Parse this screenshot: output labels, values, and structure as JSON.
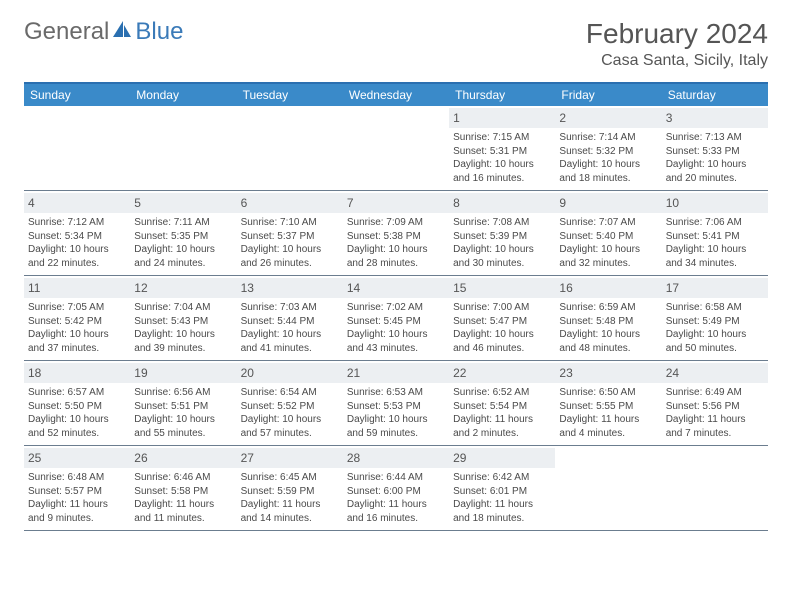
{
  "brand": {
    "general": "General",
    "blue": "Blue"
  },
  "title": "February 2024",
  "location": "Casa Santa, Sicily, Italy",
  "colors": {
    "header_bar": "#3a8ac9",
    "border": "#2a6fb0",
    "daynum_bg": "#eceff2",
    "text": "#4a4a4a",
    "logo_gray": "#6a6a6a",
    "logo_blue": "#3a7ab8"
  },
  "days_of_week": [
    "Sunday",
    "Monday",
    "Tuesday",
    "Wednesday",
    "Thursday",
    "Friday",
    "Saturday"
  ],
  "weeks": [
    [
      {
        "n": "",
        "sr": "",
        "ss": "",
        "dl": ""
      },
      {
        "n": "",
        "sr": "",
        "ss": "",
        "dl": ""
      },
      {
        "n": "",
        "sr": "",
        "ss": "",
        "dl": ""
      },
      {
        "n": "",
        "sr": "",
        "ss": "",
        "dl": ""
      },
      {
        "n": "1",
        "sr": "Sunrise: 7:15 AM",
        "ss": "Sunset: 5:31 PM",
        "dl": "Daylight: 10 hours and 16 minutes."
      },
      {
        "n": "2",
        "sr": "Sunrise: 7:14 AM",
        "ss": "Sunset: 5:32 PM",
        "dl": "Daylight: 10 hours and 18 minutes."
      },
      {
        "n": "3",
        "sr": "Sunrise: 7:13 AM",
        "ss": "Sunset: 5:33 PM",
        "dl": "Daylight: 10 hours and 20 minutes."
      }
    ],
    [
      {
        "n": "4",
        "sr": "Sunrise: 7:12 AM",
        "ss": "Sunset: 5:34 PM",
        "dl": "Daylight: 10 hours and 22 minutes."
      },
      {
        "n": "5",
        "sr": "Sunrise: 7:11 AM",
        "ss": "Sunset: 5:35 PM",
        "dl": "Daylight: 10 hours and 24 minutes."
      },
      {
        "n": "6",
        "sr": "Sunrise: 7:10 AM",
        "ss": "Sunset: 5:37 PM",
        "dl": "Daylight: 10 hours and 26 minutes."
      },
      {
        "n": "7",
        "sr": "Sunrise: 7:09 AM",
        "ss": "Sunset: 5:38 PM",
        "dl": "Daylight: 10 hours and 28 minutes."
      },
      {
        "n": "8",
        "sr": "Sunrise: 7:08 AM",
        "ss": "Sunset: 5:39 PM",
        "dl": "Daylight: 10 hours and 30 minutes."
      },
      {
        "n": "9",
        "sr": "Sunrise: 7:07 AM",
        "ss": "Sunset: 5:40 PM",
        "dl": "Daylight: 10 hours and 32 minutes."
      },
      {
        "n": "10",
        "sr": "Sunrise: 7:06 AM",
        "ss": "Sunset: 5:41 PM",
        "dl": "Daylight: 10 hours and 34 minutes."
      }
    ],
    [
      {
        "n": "11",
        "sr": "Sunrise: 7:05 AM",
        "ss": "Sunset: 5:42 PM",
        "dl": "Daylight: 10 hours and 37 minutes."
      },
      {
        "n": "12",
        "sr": "Sunrise: 7:04 AM",
        "ss": "Sunset: 5:43 PM",
        "dl": "Daylight: 10 hours and 39 minutes."
      },
      {
        "n": "13",
        "sr": "Sunrise: 7:03 AM",
        "ss": "Sunset: 5:44 PM",
        "dl": "Daylight: 10 hours and 41 minutes."
      },
      {
        "n": "14",
        "sr": "Sunrise: 7:02 AM",
        "ss": "Sunset: 5:45 PM",
        "dl": "Daylight: 10 hours and 43 minutes."
      },
      {
        "n": "15",
        "sr": "Sunrise: 7:00 AM",
        "ss": "Sunset: 5:47 PM",
        "dl": "Daylight: 10 hours and 46 minutes."
      },
      {
        "n": "16",
        "sr": "Sunrise: 6:59 AM",
        "ss": "Sunset: 5:48 PM",
        "dl": "Daylight: 10 hours and 48 minutes."
      },
      {
        "n": "17",
        "sr": "Sunrise: 6:58 AM",
        "ss": "Sunset: 5:49 PM",
        "dl": "Daylight: 10 hours and 50 minutes."
      }
    ],
    [
      {
        "n": "18",
        "sr": "Sunrise: 6:57 AM",
        "ss": "Sunset: 5:50 PM",
        "dl": "Daylight: 10 hours and 52 minutes."
      },
      {
        "n": "19",
        "sr": "Sunrise: 6:56 AM",
        "ss": "Sunset: 5:51 PM",
        "dl": "Daylight: 10 hours and 55 minutes."
      },
      {
        "n": "20",
        "sr": "Sunrise: 6:54 AM",
        "ss": "Sunset: 5:52 PM",
        "dl": "Daylight: 10 hours and 57 minutes."
      },
      {
        "n": "21",
        "sr": "Sunrise: 6:53 AM",
        "ss": "Sunset: 5:53 PM",
        "dl": "Daylight: 10 hours and 59 minutes."
      },
      {
        "n": "22",
        "sr": "Sunrise: 6:52 AM",
        "ss": "Sunset: 5:54 PM",
        "dl": "Daylight: 11 hours and 2 minutes."
      },
      {
        "n": "23",
        "sr": "Sunrise: 6:50 AM",
        "ss": "Sunset: 5:55 PM",
        "dl": "Daylight: 11 hours and 4 minutes."
      },
      {
        "n": "24",
        "sr": "Sunrise: 6:49 AM",
        "ss": "Sunset: 5:56 PM",
        "dl": "Daylight: 11 hours and 7 minutes."
      }
    ],
    [
      {
        "n": "25",
        "sr": "Sunrise: 6:48 AM",
        "ss": "Sunset: 5:57 PM",
        "dl": "Daylight: 11 hours and 9 minutes."
      },
      {
        "n": "26",
        "sr": "Sunrise: 6:46 AM",
        "ss": "Sunset: 5:58 PM",
        "dl": "Daylight: 11 hours and 11 minutes."
      },
      {
        "n": "27",
        "sr": "Sunrise: 6:45 AM",
        "ss": "Sunset: 5:59 PM",
        "dl": "Daylight: 11 hours and 14 minutes."
      },
      {
        "n": "28",
        "sr": "Sunrise: 6:44 AM",
        "ss": "Sunset: 6:00 PM",
        "dl": "Daylight: 11 hours and 16 minutes."
      },
      {
        "n": "29",
        "sr": "Sunrise: 6:42 AM",
        "ss": "Sunset: 6:01 PM",
        "dl": "Daylight: 11 hours and 18 minutes."
      },
      {
        "n": "",
        "sr": "",
        "ss": "",
        "dl": ""
      },
      {
        "n": "",
        "sr": "",
        "ss": "",
        "dl": ""
      }
    ]
  ]
}
